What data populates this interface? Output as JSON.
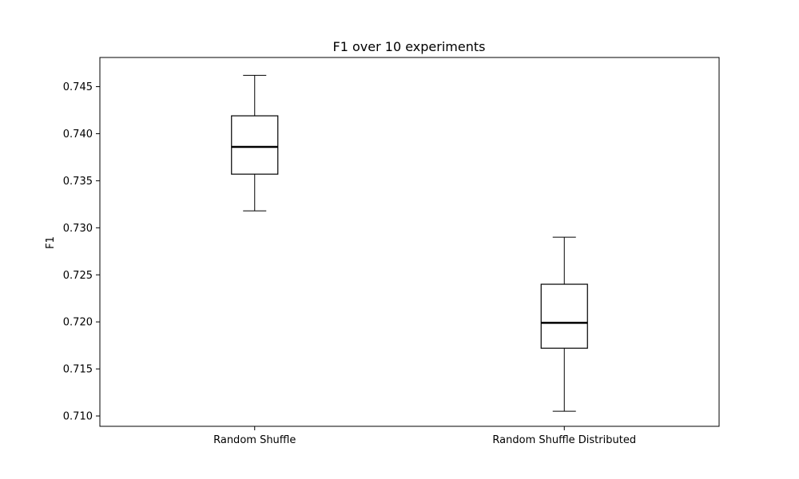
{
  "chart_data": {
    "type": "box",
    "title": "F1 over 10 experiments",
    "xlabel": "",
    "ylabel": "F1",
    "ylim": [
      0.7089,
      0.7481
    ],
    "yticks": [
      0.71,
      0.715,
      0.72,
      0.725,
      0.73,
      0.735,
      0.74,
      0.745
    ],
    "ytick_labels": [
      "0.710",
      "0.715",
      "0.720",
      "0.725",
      "0.730",
      "0.735",
      "0.740",
      "0.745"
    ],
    "categories": [
      "Random Shuffle",
      "Random Shuffle Distributed"
    ],
    "boxes": [
      {
        "whisker_low": 0.7318,
        "q1": 0.7357,
        "median": 0.7386,
        "q3": 0.7419,
        "whisker_high": 0.7462
      },
      {
        "whisker_low": 0.7105,
        "q1": 0.7172,
        "median": 0.7199,
        "q3": 0.724,
        "whisker_high": 0.729
      }
    ],
    "grid": false,
    "colors": {
      "box": "#000000",
      "background": "#ffffff"
    }
  }
}
